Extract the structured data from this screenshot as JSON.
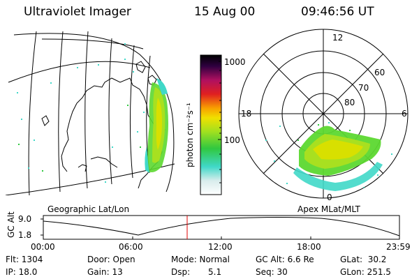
{
  "header": {
    "instrument": "Ultraviolet Imager",
    "date": "15 Aug 00",
    "time": "09:46:56 UT"
  },
  "colorbar": {
    "unit_label": "photon cm⁻²s⁻¹",
    "tick_1000": "1000",
    "tick_100": "100"
  },
  "geo_panel": {
    "label": "Geographic Lat/Lon"
  },
  "polar_panel": {
    "label": "Apex MLat/MLT",
    "mlt_12": "12",
    "mlt_18": "18",
    "mlt_6": "6",
    "mlt_0": "0",
    "lat_60": "60",
    "lat_70": "70",
    "lat_80": "80"
  },
  "altitude_plot": {
    "ylabel": "GC Alt",
    "ytick_high": "9.0",
    "ytick_low": "1.8",
    "xticks": [
      "00:00",
      "06:00",
      "12:00",
      "18:00",
      "23:59"
    ]
  },
  "status": {
    "flt": "Flt: 1304",
    "ip": "IP: 18.0",
    "door": "Door: Open",
    "gain": "Gain: 13",
    "mode": "Mode: Normal",
    "dsp_label": "Dsp:",
    "dsp_value": "5.1",
    "gc_alt": "GC Alt: 6.6 Re",
    "seq": "Seq: 30",
    "glat": "GLat:  30.2",
    "glon": "GLon: 251.5"
  },
  "colors": {
    "cursor": "#e00000",
    "aurora_high": "#d8e000",
    "aurora_mid": "#5cd830",
    "aurora_low": "#40d8c8"
  }
}
